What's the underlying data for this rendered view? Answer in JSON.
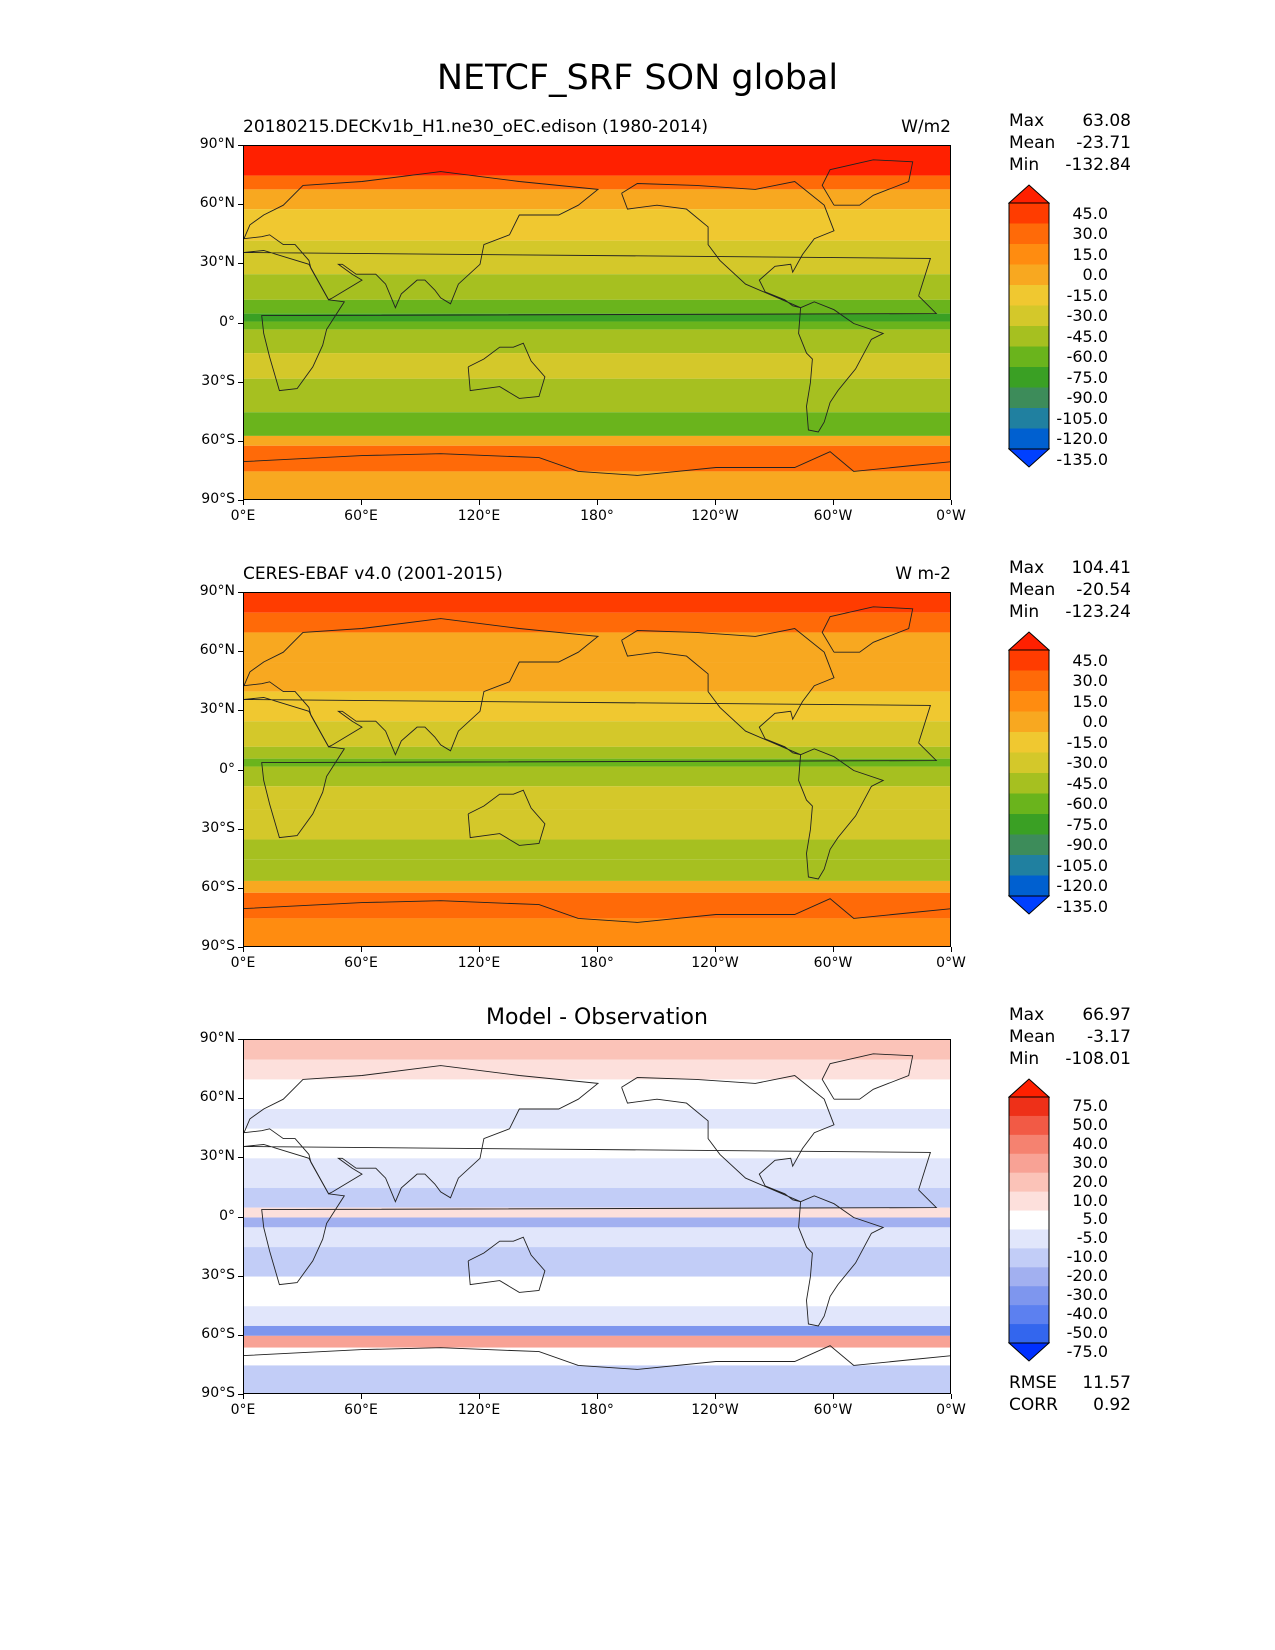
{
  "figure_title": "NETCF_SRF SON global",
  "colors": {
    "test_scale": [
      "#0040ff",
      "#0060d0",
      "#2080a0",
      "#3d8c5a",
      "#3aa024",
      "#6ab41c",
      "#a6c020",
      "#d4c82a",
      "#f0c830",
      "#f8a820",
      "#ff8c10",
      "#ff6a08",
      "#ff3c00",
      "#ff2000"
    ],
    "diff_scale": [
      "#0030ff",
      "#3366ee",
      "#5c80f0",
      "#7e96ee",
      "#a2b0f0",
      "#c2cdf7",
      "#e1e6fb",
      "#ffffff",
      "#fde0dc",
      "#fbc3b8",
      "#f8a295",
      "#f58270",
      "#f25a45",
      "#ee3018",
      "#ff2000"
    ]
  },
  "panels": [
    {
      "title_left": "20180215.DECKv1b_H1.ne30_oEC.edison (1980-2014)",
      "title_right": "W/m2",
      "title_center": "",
      "stats": {
        "max_label": "Max",
        "max": "63.08",
        "mean_label": "Mean",
        "mean": "-23.71",
        "min_label": "Min",
        "min": "-132.84"
      },
      "colorbar_labels": [
        "45.0",
        "30.0",
        "15.0",
        "0.0",
        "-15.0",
        "-30.0",
        "-45.0",
        "-60.0",
        "-75.0",
        "-90.0",
        "-105.0",
        "-120.0",
        "-135.0"
      ]
    },
    {
      "title_left": "CERES-EBAF v4.0 (2001-2015)",
      "title_right": "W m-2",
      "title_center": "",
      "stats": {
        "max_label": "Max",
        "max": "104.41",
        "mean_label": "Mean",
        "mean": "-20.54",
        "min_label": "Min",
        "min": "-123.24"
      },
      "colorbar_labels": [
        "45.0",
        "30.0",
        "15.0",
        "0.0",
        "-15.0",
        "-30.0",
        "-45.0",
        "-60.0",
        "-75.0",
        "-90.0",
        "-105.0",
        "-120.0",
        "-135.0"
      ]
    },
    {
      "title_left": "",
      "title_right": "",
      "title_center": "Model - Observation",
      "stats": {
        "max_label": "Max",
        "max": "66.97",
        "mean_label": "Mean",
        "mean": "-3.17",
        "min_label": "Min",
        "min": "-108.01"
      },
      "colorbar_labels": [
        "75.0",
        "50.0",
        "40.0",
        "30.0",
        "20.0",
        "10.0",
        "5.0",
        "-5.0",
        "-10.0",
        "-20.0",
        "-30.0",
        "-40.0",
        "-50.0",
        "-75.0"
      ],
      "metrics": {
        "rmse_label": "RMSE",
        "rmse": "11.57",
        "corr_label": "CORR",
        "corr": "0.92"
      }
    }
  ],
  "x_ticks": [
    "0°E",
    "60°E",
    "120°E",
    "180°",
    "120°W",
    "60°W",
    "0°W"
  ],
  "y_ticks": [
    "90°N",
    "60°N",
    "30°N",
    "0°",
    "30°S",
    "60°S",
    "90°S"
  ],
  "chart_data": [
    {
      "type": "heatmap",
      "variable": "NETCF_SRF",
      "season": "SON",
      "field": "model climatology",
      "xlim": [
        0,
        360
      ],
      "ylim": [
        -90,
        90
      ],
      "zonal_mean_profile": {
        "lat": [
          90,
          75,
          60,
          45,
          30,
          15,
          5,
          0,
          -5,
          -15,
          -30,
          -45,
          -60,
          -75,
          -90
        ],
        "value": [
          40,
          20,
          -5,
          -20,
          -15,
          -30,
          -60,
          -55,
          -45,
          -35,
          -40,
          -55,
          15,
          25,
          20
        ]
      }
    },
    {
      "type": "heatmap",
      "variable": "NETCF_SRF",
      "season": "SON",
      "field": "observation climatology",
      "xlim": [
        0,
        360
      ],
      "ylim": [
        -90,
        90
      ],
      "zonal_mean_profile": {
        "lat": [
          90,
          75,
          60,
          45,
          30,
          15,
          5,
          0,
          -5,
          -15,
          -30,
          -45,
          -60,
          -75,
          -90
        ],
        "value": [
          35,
          20,
          0,
          -10,
          -10,
          -25,
          -55,
          -40,
          -35,
          -25,
          -30,
          -45,
          20,
          25,
          20
        ]
      }
    },
    {
      "type": "heatmap",
      "variable": "NETCF_SRF",
      "season": "SON",
      "field": "model minus observation",
      "xlim": [
        0,
        360
      ],
      "ylim": [
        -90,
        90
      ],
      "zonal_mean_profile": {
        "lat": [
          90,
          75,
          60,
          45,
          30,
          15,
          5,
          0,
          -5,
          -15,
          -30,
          -45,
          -60,
          -75,
          -90
        ],
        "value": [
          5,
          0,
          -5,
          -10,
          -5,
          -5,
          -5,
          -15,
          -10,
          -10,
          -10,
          -10,
          -5,
          0,
          0
        ]
      }
    }
  ]
}
